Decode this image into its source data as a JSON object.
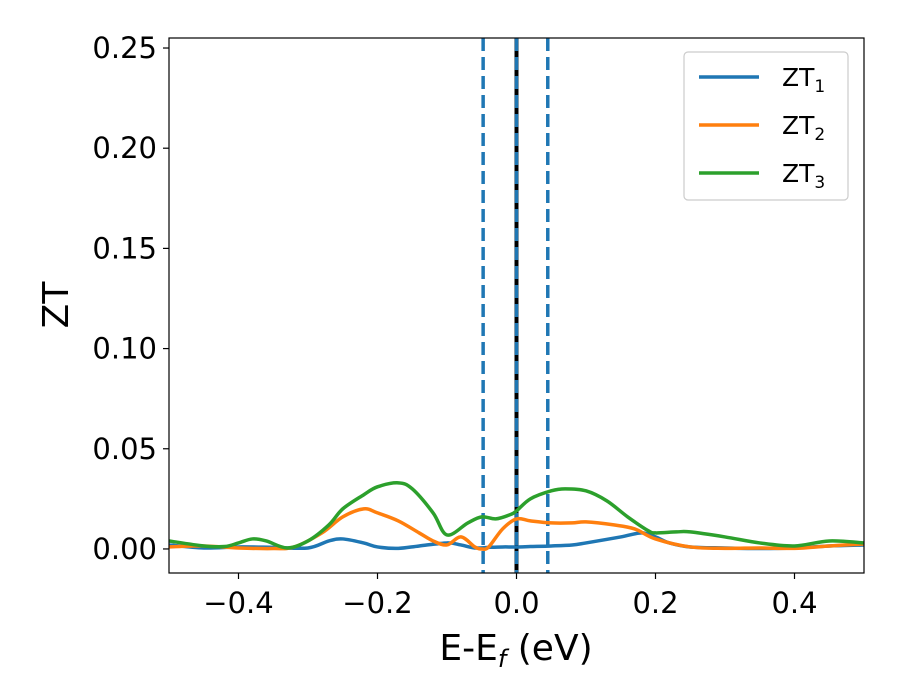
{
  "chart_data": {
    "type": "line",
    "title": "",
    "xlabel": "E-E",
    "xlabel_sub": "f",
    "xlabel_unit": " (eV)",
    "ylabel": "ZT",
    "xlim": [
      -0.5,
      0.5
    ],
    "ylim": [
      -0.012,
      0.255
    ],
    "xticks": [
      -0.4,
      -0.2,
      0.0,
      0.2,
      0.4
    ],
    "xtick_labels": [
      "−0.4",
      "−0.2",
      "0.0",
      "0.2",
      "0.4"
    ],
    "yticks": [
      0.0,
      0.05,
      0.1,
      0.15,
      0.2,
      0.25
    ],
    "ytick_labels": [
      "0.00",
      "0.05",
      "0.10",
      "0.15",
      "0.20",
      "0.25"
    ],
    "grid": false,
    "legend_position": "top-right",
    "vlines": [
      {
        "x": -0.048,
        "style": "dashed",
        "color": "#1f77b4"
      },
      {
        "x": 0.0,
        "style": "solid",
        "color": "#000000"
      },
      {
        "x": 0.0,
        "style": "dashed",
        "color": "#1f77b4"
      },
      {
        "x": 0.045,
        "style": "dashed",
        "color": "#1f77b4"
      }
    ],
    "series": [
      {
        "name": "ZT",
        "name_sub": "1",
        "color": "#1f77b4",
        "x": [
          -0.5,
          -0.45,
          -0.4,
          -0.35,
          -0.3,
          -0.27,
          -0.25,
          -0.22,
          -0.2,
          -0.17,
          -0.14,
          -0.1,
          -0.08,
          -0.06,
          -0.04,
          -0.02,
          0.0,
          0.02,
          0.05,
          0.08,
          0.1,
          0.15,
          0.18,
          0.2,
          0.22,
          0.25,
          0.3,
          0.35,
          0.4,
          0.45,
          0.5
        ],
        "y": [
          0.002,
          0.0005,
          0.001,
          0.0008,
          0.0005,
          0.004,
          0.005,
          0.003,
          0.001,
          0.0003,
          0.0015,
          0.003,
          0.002,
          0.0005,
          0.0008,
          0.001,
          0.001,
          0.0012,
          0.0015,
          0.002,
          0.003,
          0.006,
          0.008,
          0.006,
          0.003,
          0.001,
          0.0005,
          0.0002,
          0.0005,
          0.0015,
          0.002
        ]
      },
      {
        "name": "ZT",
        "name_sub": "2",
        "color": "#ff7f0e",
        "x": [
          -0.5,
          -0.45,
          -0.4,
          -0.35,
          -0.32,
          -0.28,
          -0.25,
          -0.22,
          -0.2,
          -0.17,
          -0.14,
          -0.12,
          -0.1,
          -0.08,
          -0.06,
          -0.05,
          -0.04,
          -0.02,
          0.0,
          0.02,
          0.05,
          0.08,
          0.1,
          0.14,
          0.17,
          0.2,
          0.25,
          0.3,
          0.35,
          0.4,
          0.45,
          0.5
        ],
        "y": [
          0.001,
          0.0015,
          0.0005,
          0.0002,
          0.001,
          0.008,
          0.016,
          0.02,
          0.018,
          0.014,
          0.008,
          0.004,
          0.002,
          0.006,
          0.001,
          0.0,
          0.001,
          0.01,
          0.015,
          0.014,
          0.013,
          0.013,
          0.0135,
          0.012,
          0.01,
          0.005,
          0.001,
          0.0003,
          0.0005,
          0.0003,
          0.0015,
          0.0025
        ]
      },
      {
        "name": "ZT",
        "name_sub": "3",
        "color": "#2ca02c",
        "x": [
          -0.5,
          -0.45,
          -0.42,
          -0.4,
          -0.38,
          -0.36,
          -0.33,
          -0.3,
          -0.27,
          -0.25,
          -0.22,
          -0.2,
          -0.17,
          -0.15,
          -0.12,
          -0.1,
          -0.07,
          -0.05,
          -0.03,
          -0.01,
          0.0,
          0.02,
          0.05,
          0.07,
          0.1,
          0.13,
          0.16,
          0.19,
          0.2,
          0.23,
          0.25,
          0.3,
          0.35,
          0.4,
          0.45,
          0.5
        ],
        "y": [
          0.004,
          0.0015,
          0.0012,
          0.003,
          0.005,
          0.004,
          0.0005,
          0.004,
          0.012,
          0.02,
          0.027,
          0.031,
          0.033,
          0.03,
          0.018,
          0.007,
          0.013,
          0.016,
          0.015,
          0.017,
          0.019,
          0.025,
          0.029,
          0.03,
          0.029,
          0.024,
          0.016,
          0.009,
          0.008,
          0.0085,
          0.0085,
          0.006,
          0.003,
          0.0015,
          0.004,
          0.003
        ]
      }
    ]
  }
}
